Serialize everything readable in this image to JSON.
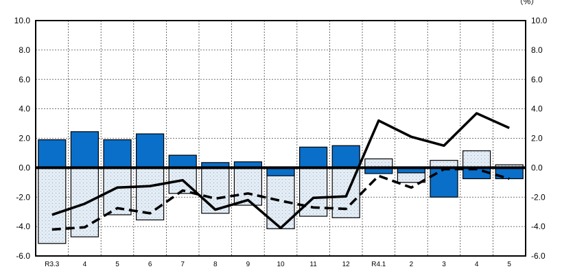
{
  "unit_label": "（%）",
  "chart_data": {
    "type": "bar",
    "categories": [
      "R3.3",
      "4",
      "5",
      "6",
      "7",
      "8",
      "9",
      "10",
      "11",
      "12",
      "R4.1",
      "2",
      "3",
      "4",
      "5"
    ],
    "ylim": [
      -6.0,
      10.0
    ],
    "y_ticks": [
      "10.0",
      "8.0",
      "6.0",
      "4.0",
      "2.0",
      "0.0",
      "-2.0",
      "-4.0",
      "-6.0"
    ],
    "grid": true,
    "series": [
      {
        "style": "bar-blue",
        "color": "#0a6fc9",
        "values": [
          1.9,
          2.45,
          1.9,
          2.3,
          0.85,
          0.35,
          0.4,
          -0.55,
          1.4,
          1.5,
          -0.4,
          -0.35,
          -2.0,
          -0.75,
          -0.75
        ]
      },
      {
        "style": "bar-dotted",
        "color": "#e4ecf4",
        "values": [
          -5.15,
          -4.7,
          -3.2,
          -3.55,
          -1.75,
          -3.1,
          -2.55,
          -4.15,
          -3.3,
          -3.4,
          0.6,
          -1.0,
          0.5,
          1.15,
          0.2
        ]
      },
      {
        "style": "line-solid",
        "color": "#000000",
        "values": [
          -3.2,
          -2.45,
          -1.35,
          -1.25,
          -0.85,
          -2.85,
          -2.2,
          -4.1,
          -2.05,
          -1.95,
          3.2,
          2.1,
          1.5,
          3.7,
          2.7
        ]
      },
      {
        "style": "line-dashed",
        "color": "#000000",
        "values": [
          -4.2,
          -4.05,
          -2.75,
          -3.1,
          -1.55,
          -2.1,
          -1.75,
          -2.25,
          -2.7,
          -2.8,
          -0.55,
          -1.35,
          -0.1,
          -0.1,
          -0.75
        ]
      }
    ]
  }
}
